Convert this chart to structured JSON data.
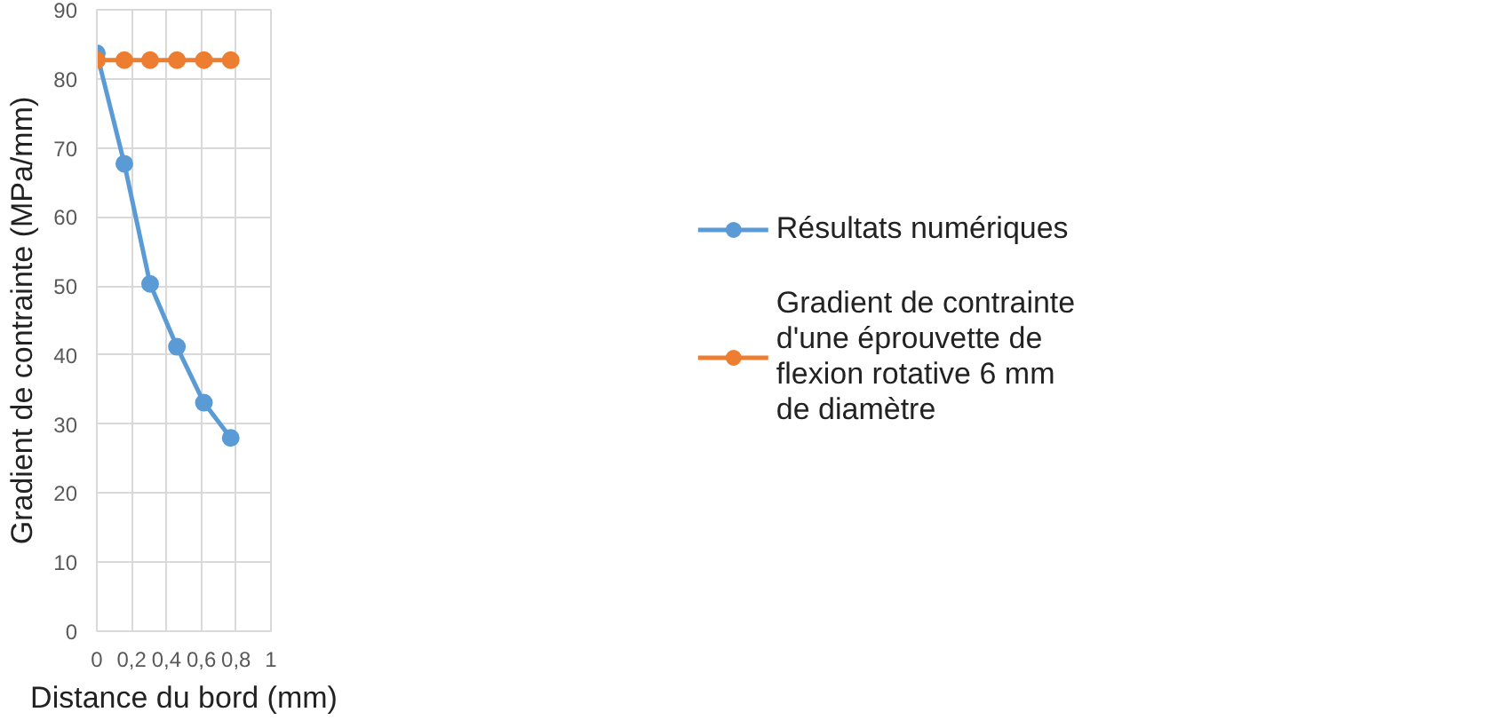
{
  "chart_data": {
    "type": "line",
    "xlabel": "Distance du bord (mm)",
    "ylabel": "Gradient de contrainte (MPa/mm)",
    "x": [
      0,
      0.158,
      0.306,
      0.46,
      0.615,
      0.769
    ],
    "series": [
      {
        "name": "Résultats numériques",
        "color": "#5b9bd5",
        "values": [
          83.7,
          67.7,
          50.3,
          41.2,
          33.1,
          28.0
        ]
      },
      {
        "name": "Gradient de contrainte d'une éprouvette de flexion rotative 6 mm de diamètre",
        "color": "#ed7d31",
        "values": [
          82.7,
          82.7,
          82.7,
          82.7,
          82.7,
          82.7
        ]
      }
    ],
    "xlim": [
      0,
      1
    ],
    "xticks": [
      {
        "value": 0,
        "label": "0"
      },
      {
        "value": 0.2,
        "label": "0,2"
      },
      {
        "value": 0.4,
        "label": "0,4"
      },
      {
        "value": 0.6,
        "label": "0,6"
      },
      {
        "value": 0.8,
        "label": "0,8"
      },
      {
        "value": 1,
        "label": "1"
      }
    ],
    "ylim": [
      0,
      90
    ],
    "yticks": [
      0,
      10,
      20,
      30,
      40,
      50,
      60,
      70,
      80,
      90
    ],
    "grid": true,
    "legend": "right",
    "marker": "circle",
    "line_style": "solid"
  }
}
